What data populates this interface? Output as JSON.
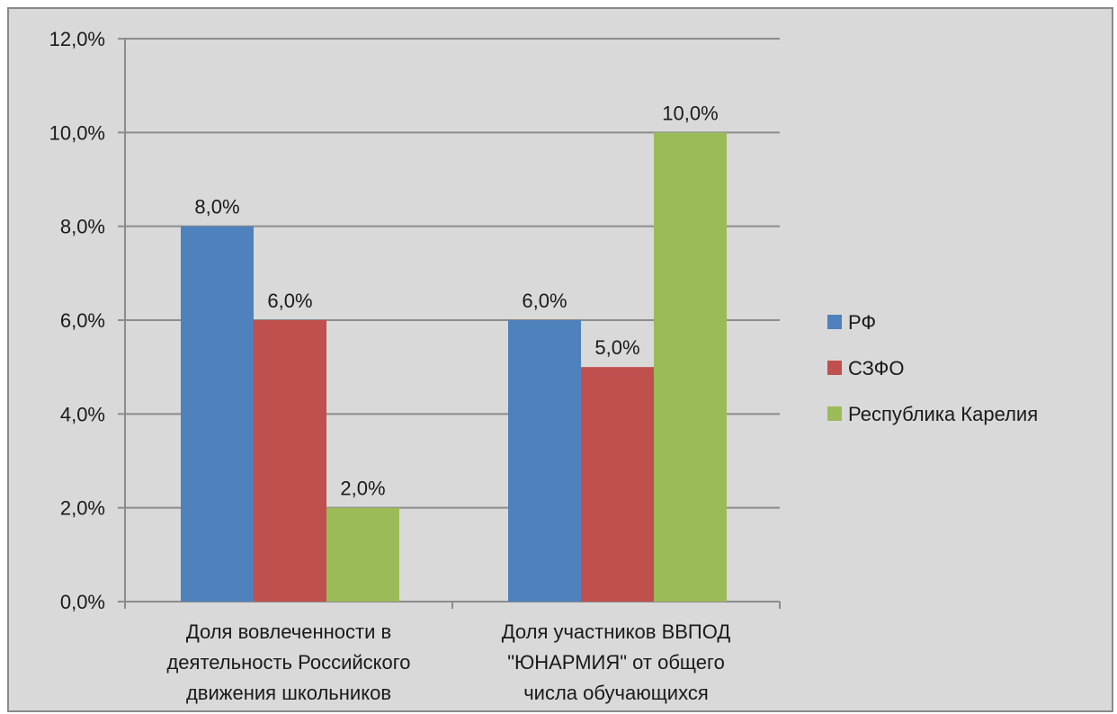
{
  "chart_data": {
    "type": "bar",
    "categories": [
      [
        "Доля вовлеченности в",
        "деятельность Российского",
        "движения школьников"
      ],
      [
        "Доля участников ВВПОД",
        "\"ЮНАРМИЯ\" от общего",
        "числа обучающихся"
      ]
    ],
    "series": [
      {
        "name": "РФ",
        "color": "#4f81bd",
        "values": [
          8.0,
          6.0
        ],
        "labels": [
          "8,0%",
          "6,0%"
        ]
      },
      {
        "name": "СЗФО",
        "color": "#c0504d",
        "values": [
          6.0,
          5.0
        ],
        "labels": [
          "6,0%",
          "5,0%"
        ]
      },
      {
        "name": "Республика Карелия",
        "color": "#9bbb59",
        "values": [
          2.0,
          10.0
        ],
        "labels": [
          "2,0%",
          "10,0%"
        ]
      }
    ],
    "y_ticks": [
      "0,0%",
      "2,0%",
      "4,0%",
      "6,0%",
      "8,0%",
      "10,0%",
      "12,0%"
    ],
    "ylim": [
      0,
      12
    ],
    "ystep": 2,
    "grid": true,
    "legend_position": "right"
  }
}
